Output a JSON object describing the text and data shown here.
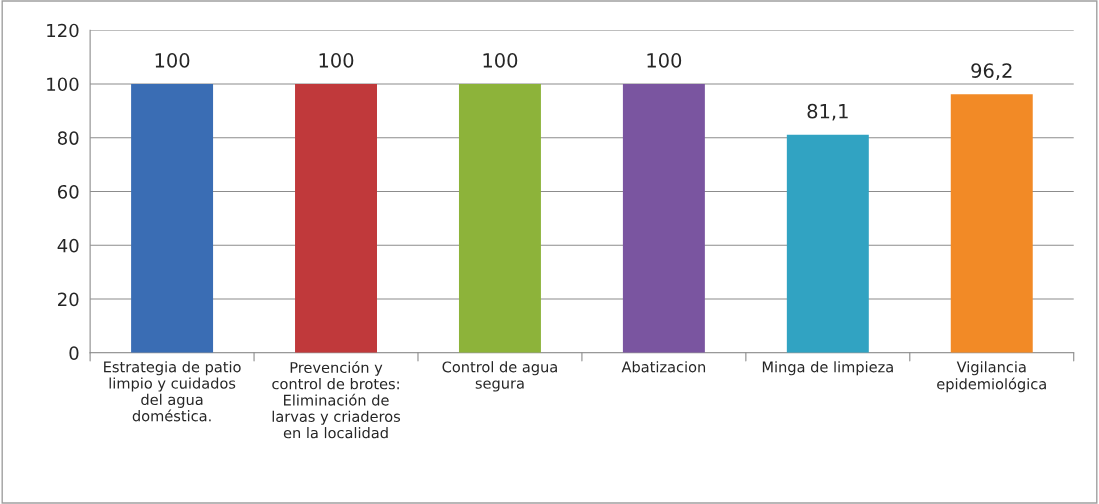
{
  "chart_data": {
    "type": "bar",
    "categories": [
      "Estrategia de patio\nlimpio y cuidados\ndel agua\ndoméstica.",
      "Prevención y\ncontrol de brotes:\nEliminación de\nlarvas y criaderos\nen la localidad",
      "Control de agua\nsegura",
      "Abatizacion",
      "Minga de limpieza",
      "Vigilancia\nepidemiológica"
    ],
    "values": [
      100,
      100,
      100,
      100,
      81.1,
      96.2
    ],
    "value_labels": [
      "100",
      "100",
      "100",
      "100",
      "81,1",
      "96,2"
    ],
    "colors": [
      "#3a6db4",
      "#c0393b",
      "#8db33a",
      "#7a55a0",
      "#31a3c2",
      "#f28a26"
    ],
    "ylim": [
      0,
      120
    ],
    "yticks": [
      0,
      20,
      40,
      60,
      80,
      100,
      120
    ],
    "grid": "y",
    "legend": false
  }
}
